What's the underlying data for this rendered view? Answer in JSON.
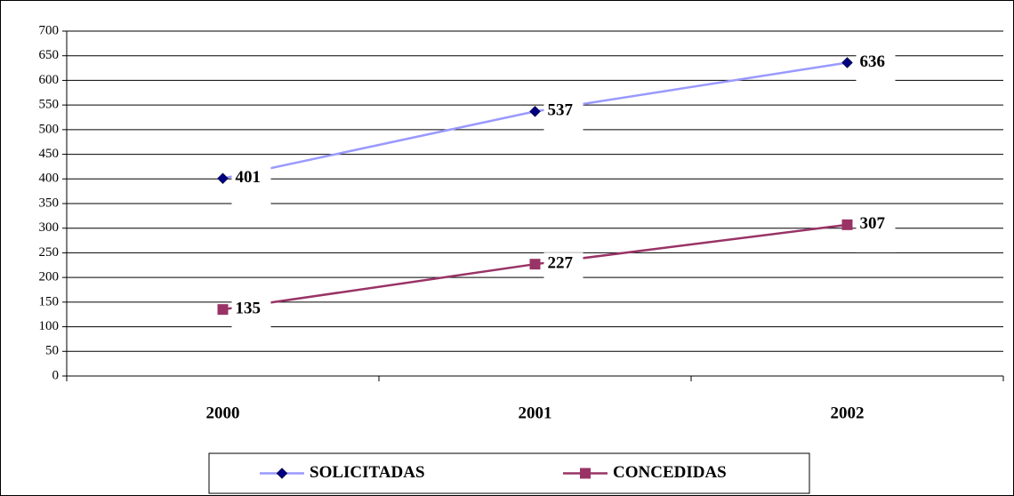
{
  "chart_data": {
    "type": "line",
    "categories": [
      "2000",
      "2001",
      "2002"
    ],
    "series": [
      {
        "name": "SOLICITADAS",
        "color": "#9999ff",
        "marker": "diamond",
        "marker_color": "#000080",
        "values": [
          401,
          537,
          636
        ]
      },
      {
        "name": "CONCEDIDAS",
        "color": "#993366",
        "marker": "square",
        "marker_color": "#993366",
        "values": [
          135,
          227,
          307
        ]
      }
    ],
    "ylim": [
      0,
      700
    ],
    "yticks": [
      0,
      50,
      100,
      150,
      200,
      250,
      300,
      350,
      400,
      450,
      500,
      550,
      600,
      650,
      700
    ],
    "grid": true,
    "legend": "bottom"
  }
}
